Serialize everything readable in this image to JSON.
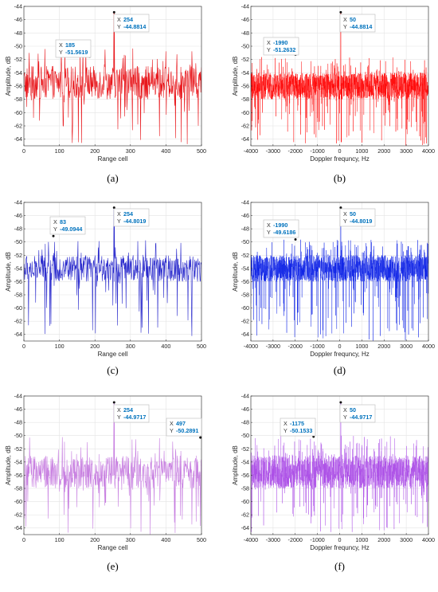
{
  "chart_data": [
    {
      "type": "line",
      "panel_label": "(a)",
      "xlabel": "Range cell",
      "ylabel": "Amplitude, dB",
      "xlim": [
        0,
        500
      ],
      "ylim": [
        -65,
        -44
      ],
      "xticks": [
        0,
        100,
        200,
        300,
        400,
        500
      ],
      "yticks": [
        -64,
        -62,
        -60,
        -58,
        -56,
        -54,
        -52,
        -50,
        -48,
        -46,
        -44
      ],
      "grid": true,
      "color": "#e8161b",
      "series": [
        {
          "x_range": [
            0,
            500
          ],
          "points": 500,
          "typical_band": [
            -58,
            -53
          ],
          "noise_floor_min": -65,
          "peak": {
            "x": 254,
            "y": -44.8814
          }
        }
      ],
      "datatips": [
        {
          "x_label": "X",
          "y_label": "Y",
          "x": "185",
          "y": "-51.5619",
          "px": 185,
          "py": -51.5619
        },
        {
          "x_label": "X",
          "y_label": "Y",
          "x": "254",
          "y": "-44.8814",
          "px": 254,
          "py": -44.8814
        }
      ]
    },
    {
      "type": "line",
      "panel_label": "(b)",
      "xlabel": "Doppler frequncy, Hz",
      "ylabel": "Amplitude, dB",
      "xlim": [
        -4000,
        4000
      ],
      "ylim": [
        -65,
        -44
      ],
      "xticks": [
        -4000,
        -3000,
        -2000,
        -1000,
        0,
        1000,
        2000,
        3000,
        4000
      ],
      "yticks": [
        -64,
        -62,
        -60,
        -58,
        -56,
        -54,
        -52,
        -50,
        -48,
        -46,
        -44
      ],
      "grid": true,
      "color": "#ff0000",
      "series": [
        {
          "x_range": [
            -4000,
            4000
          ],
          "points": 1600,
          "typical_band": [
            -58,
            -54
          ],
          "noise_floor_min": -65,
          "peak": {
            "x": 50,
            "y": -44.8814
          }
        }
      ],
      "datatips": [
        {
          "x_label": "X",
          "y_label": "Y",
          "x": "-1990",
          "y": "-51.2632",
          "px": -1990,
          "py": -51.2632
        },
        {
          "x_label": "X",
          "y_label": "Y",
          "x": "50",
          "y": "-44.8814",
          "px": 50,
          "py": -44.8814
        }
      ]
    },
    {
      "type": "line",
      "panel_label": "(c)",
      "xlabel": "Range cell",
      "ylabel": "Amplitude, dB",
      "xlim": [
        0,
        500
      ],
      "ylim": [
        -65,
        -44
      ],
      "xticks": [
        0,
        100,
        200,
        300,
        400,
        500
      ],
      "yticks": [
        -64,
        -62,
        -60,
        -58,
        -56,
        -54,
        -52,
        -50,
        -48,
        -46,
        -44
      ],
      "grid": true,
      "color": "#2929cc",
      "series": [
        {
          "x_range": [
            0,
            500
          ],
          "points": 500,
          "typical_band": [
            -56,
            -52
          ],
          "noise_floor_min": -65,
          "peak": {
            "x": 254,
            "y": -44.8019
          }
        }
      ],
      "datatips": [
        {
          "x_label": "X",
          "y_label": "Y",
          "x": "83",
          "y": "-49.0944",
          "px": 83,
          "py": -49.0944
        },
        {
          "x_label": "X",
          "y_label": "Y",
          "x": "254",
          "y": "-44.8019",
          "px": 254,
          "py": -44.8019
        }
      ]
    },
    {
      "type": "line",
      "panel_label": "(d)",
      "xlabel": "Doppler frequncy, Hz",
      "ylabel": "Amplitude, dB",
      "xlim": [
        -4000,
        4000
      ],
      "ylim": [
        -65,
        -44
      ],
      "xticks": [
        -4000,
        -3000,
        -2000,
        -1000,
        0,
        1000,
        2000,
        3000,
        4000
      ],
      "yticks": [
        -64,
        -62,
        -60,
        -58,
        -56,
        -54,
        -52,
        -50,
        -48,
        -46,
        -44
      ],
      "grid": true,
      "color": "#0a1fe6",
      "series": [
        {
          "x_range": [
            -4000,
            4000
          ],
          "points": 1600,
          "typical_band": [
            -56,
            -52
          ],
          "noise_floor_min": -65,
          "peak": {
            "x": 50,
            "y": -44.8019
          }
        }
      ],
      "datatips": [
        {
          "x_label": "X",
          "y_label": "Y",
          "x": "-1990",
          "y": "-49.6186",
          "px": -1990,
          "py": -49.6186
        },
        {
          "x_label": "X",
          "y_label": "Y",
          "x": "50",
          "y": "-44.8019",
          "px": 50,
          "py": -44.8019
        }
      ]
    },
    {
      "type": "line",
      "panel_label": "(e)",
      "xlabel": "Range cell",
      "ylabel": "Amplitude, dB",
      "xlim": [
        0,
        500
      ],
      "ylim": [
        -65,
        -44
      ],
      "xticks": [
        0,
        100,
        200,
        300,
        400,
        500
      ],
      "yticks": [
        -64,
        -62,
        -60,
        -58,
        -56,
        -54,
        -52,
        -50,
        -48,
        -46,
        -44
      ],
      "grid": true,
      "color": "#c77ee0",
      "series": [
        {
          "x_range": [
            0,
            500
          ],
          "points": 500,
          "typical_band": [
            -58,
            -53
          ],
          "noise_floor_min": -65,
          "peak": {
            "x": 254,
            "y": -44.9717
          }
        }
      ],
      "datatips": [
        {
          "x_label": "X",
          "y_label": "Y",
          "x": "254",
          "y": "-44.9717",
          "px": 254,
          "py": -44.9717
        },
        {
          "x_label": "X",
          "y_label": "Y",
          "x": "497",
          "y": "-50.2891",
          "px": 497,
          "py": -50.2891
        }
      ]
    },
    {
      "type": "line",
      "panel_label": "(f)",
      "xlabel": "Doppler frequncy, Hz",
      "ylabel": "Amplitude, dB",
      "xlim": [
        -4000,
        4000
      ],
      "ylim": [
        -65,
        -44
      ],
      "xticks": [
        -4000,
        -3000,
        -2000,
        -1000,
        0,
        1000,
        2000,
        3000,
        4000
      ],
      "yticks": [
        -64,
        -62,
        -60,
        -58,
        -56,
        -54,
        -52,
        -50,
        -48,
        -46,
        -44
      ],
      "grid": true,
      "color": "#a94ae6",
      "series": [
        {
          "x_range": [
            -4000,
            4000
          ],
          "points": 1600,
          "typical_band": [
            -58,
            -53
          ],
          "noise_floor_min": -65,
          "peak": {
            "x": 50,
            "y": -44.9717
          }
        }
      ],
      "datatips": [
        {
          "x_label": "X",
          "y_label": "Y",
          "x": "-1175",
          "y": "-50.1533",
          "px": -1175,
          "py": -50.1533
        },
        {
          "x_label": "X",
          "y_label": "Y",
          "x": "50",
          "y": "-44.9717",
          "px": 50,
          "py": -44.9717
        }
      ]
    }
  ]
}
